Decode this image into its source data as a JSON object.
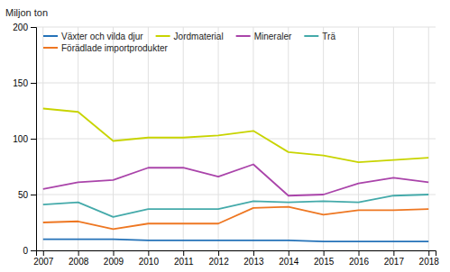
{
  "chart_data": {
    "type": "line",
    "ylabel": "Miljon ton",
    "x": [
      2007,
      2008,
      2009,
      2010,
      2011,
      2012,
      2013,
      2014,
      2015,
      2016,
      2017,
      2018
    ],
    "series": [
      {
        "name": "Växter och vilda djur",
        "color": "#2472b8",
        "values": [
          10,
          10,
          10,
          9,
          9,
          9,
          9,
          9,
          8,
          8,
          8,
          8
        ]
      },
      {
        "name": "Jordmaterial",
        "color": "#c8d400",
        "values": [
          127,
          124,
          98,
          101,
          101,
          103,
          107,
          88,
          85,
          79,
          81,
          83
        ]
      },
      {
        "name": "Mineraler",
        "color": "#aa44aa",
        "values": [
          55,
          61,
          63,
          74,
          74,
          66,
          77,
          49,
          50,
          60,
          65,
          61
        ]
      },
      {
        "name": "Trä",
        "color": "#44aaaa",
        "values": [
          41,
          43,
          30,
          37,
          37,
          37,
          44,
          43,
          44,
          43,
          49,
          50
        ]
      },
      {
        "name": "Förädlade importprodukter",
        "color": "#ee7722",
        "values": [
          25,
          26,
          19,
          24,
          24,
          24,
          38,
          39,
          32,
          36,
          36,
          37
        ]
      }
    ],
    "xlim": [
      2006.8,
      2018.2
    ],
    "xticks": [
      2007,
      2008,
      2009,
      2010,
      2011,
      2012,
      2013,
      2014,
      2015,
      2016,
      2017,
      2018
    ],
    "ylim": [
      0,
      200
    ],
    "yticks": [
      0,
      50,
      100,
      150,
      200
    ],
    "grid": true,
    "legend": "upper left"
  }
}
